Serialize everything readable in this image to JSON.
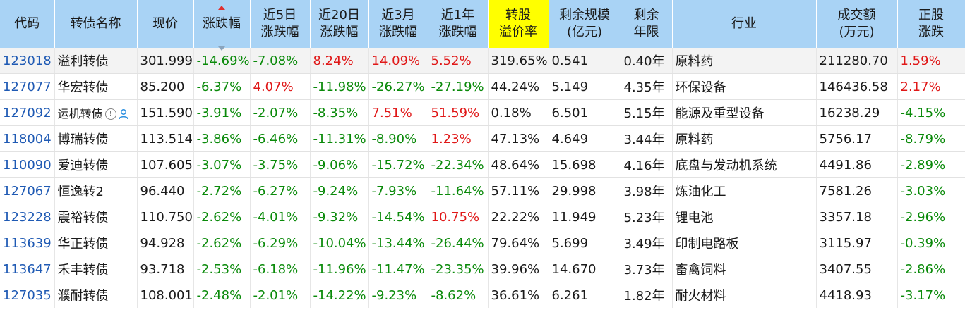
{
  "columns": [
    {
      "l1": "代码",
      "l2": ""
    },
    {
      "l1": "转债名称",
      "l2": ""
    },
    {
      "l1": "现价",
      "l2": ""
    },
    {
      "l1": "涨跌幅",
      "l2": ""
    },
    {
      "l1": "近5日",
      "l2": "涨跌幅"
    },
    {
      "l1": "近20日",
      "l2": "涨跌幅"
    },
    {
      "l1": "近3月",
      "l2": "涨跌幅"
    },
    {
      "l1": "近1年",
      "l2": "涨跌幅"
    },
    {
      "l1": "转股",
      "l2": "溢价率"
    },
    {
      "l1": "剩余规模",
      "l2": "(亿元)"
    },
    {
      "l1": "剩余",
      "l2": "年限"
    },
    {
      "l1": "行业",
      "l2": ""
    },
    {
      "l1": "成交额",
      "l2": "(万元)"
    },
    {
      "l1": "正股",
      "l2": "涨跌"
    }
  ],
  "rows": [
    {
      "code": "123018",
      "name": "溢利转债",
      "price": "301.999",
      "chg": "-14.69%",
      "c5": "-7.08%",
      "c20": "8.24%",
      "c3m": "14.09%",
      "c1y": "5.52%",
      "premium": "319.65%",
      "scale": "0.541",
      "years": "0.40年",
      "industry": "原料药",
      "amount": "211280.70",
      "stock": "1.59%"
    },
    {
      "code": "127077",
      "name": "华宏转债",
      "price": "85.200",
      "chg": "-6.37%",
      "c5": "4.07%",
      "c20": "-11.98%",
      "c3m": "-26.27%",
      "c1y": "-27.19%",
      "premium": "44.24%",
      "scale": "5.149",
      "years": "4.35年",
      "industry": "环保设备",
      "amount": "146436.58",
      "stock": "2.17%"
    },
    {
      "code": "127092",
      "name": "运机转债",
      "price": "151.590",
      "chg": "-3.91%",
      "c5": "-2.07%",
      "c20": "-8.35%",
      "c3m": "7.51%",
      "c1y": "51.59%",
      "premium": "0.18%",
      "scale": "6.501",
      "years": "5.15年",
      "industry": "能源及重型设备",
      "amount": "16238.29",
      "stock": "-4.15%"
    },
    {
      "code": "118004",
      "name": "博瑞转债",
      "price": "113.514",
      "chg": "-3.86%",
      "c5": "-6.46%",
      "c20": "-11.31%",
      "c3m": "-8.90%",
      "c1y": "1.23%",
      "premium": "47.13%",
      "scale": "4.649",
      "years": "3.44年",
      "industry": "原料药",
      "amount": "5756.17",
      "stock": "-8.79%"
    },
    {
      "code": "110090",
      "name": "爱迪转债",
      "price": "107.605",
      "chg": "-3.07%",
      "c5": "-3.75%",
      "c20": "-9.06%",
      "c3m": "-15.72%",
      "c1y": "-22.34%",
      "premium": "48.64%",
      "scale": "15.698",
      "years": "4.16年",
      "industry": "底盘与发动机系统",
      "amount": "4491.86",
      "stock": "-2.89%"
    },
    {
      "code": "127067",
      "name": "恒逸转2",
      "price": "96.440",
      "chg": "-2.72%",
      "c5": "-6.27%",
      "c20": "-9.24%",
      "c3m": "-7.93%",
      "c1y": "-11.64%",
      "premium": "57.11%",
      "scale": "29.998",
      "years": "3.98年",
      "industry": "炼油化工",
      "amount": "7581.26",
      "stock": "-3.03%"
    },
    {
      "code": "123228",
      "name": "震裕转债",
      "price": "110.750",
      "chg": "-2.62%",
      "c5": "-4.01%",
      "c20": "-9.32%",
      "c3m": "-14.54%",
      "c1y": "10.75%",
      "premium": "22.22%",
      "scale": "11.949",
      "years": "5.23年",
      "industry": "锂电池",
      "amount": "3357.18",
      "stock": "-2.96%"
    },
    {
      "code": "113639",
      "name": "华正转债",
      "price": "94.928",
      "chg": "-2.62%",
      "c5": "-6.29%",
      "c20": "-10.04%",
      "c3m": "-13.44%",
      "c1y": "-26.44%",
      "premium": "79.64%",
      "scale": "5.699",
      "years": "3.49年",
      "industry": "印制电路板",
      "amount": "3115.97",
      "stock": "-0.39%"
    },
    {
      "code": "113647",
      "name": "禾丰转债",
      "price": "93.718",
      "chg": "-2.53%",
      "c5": "-6.18%",
      "c20": "-11.96%",
      "c3m": "-11.47%",
      "c1y": "-23.35%",
      "premium": "39.96%",
      "scale": "14.670",
      "years": "3.73年",
      "industry": "畜禽饲料",
      "amount": "3407.55",
      "stock": "-2.86%"
    },
    {
      "code": "127035",
      "name": "濮耐转债",
      "price": "108.001",
      "chg": "-2.48%",
      "c5": "-2.01%",
      "c20": "-14.22%",
      "c3m": "-9.23%",
      "c1y": "-8.62%",
      "premium": "36.61%",
      "scale": "6.261",
      "years": "1.82年",
      "industry": "耐火材料",
      "amount": "4418.93",
      "stock": "-3.17%"
    }
  ],
  "icons": {
    "row2_info": "info-circle-icon",
    "row2_user": "user-icon"
  },
  "colors": {
    "header_bg": "#a9d3f5",
    "highlight": "#ffff00",
    "up": "#e01818",
    "down": "#0a8a0a",
    "code": "#1f5ab4"
  }
}
